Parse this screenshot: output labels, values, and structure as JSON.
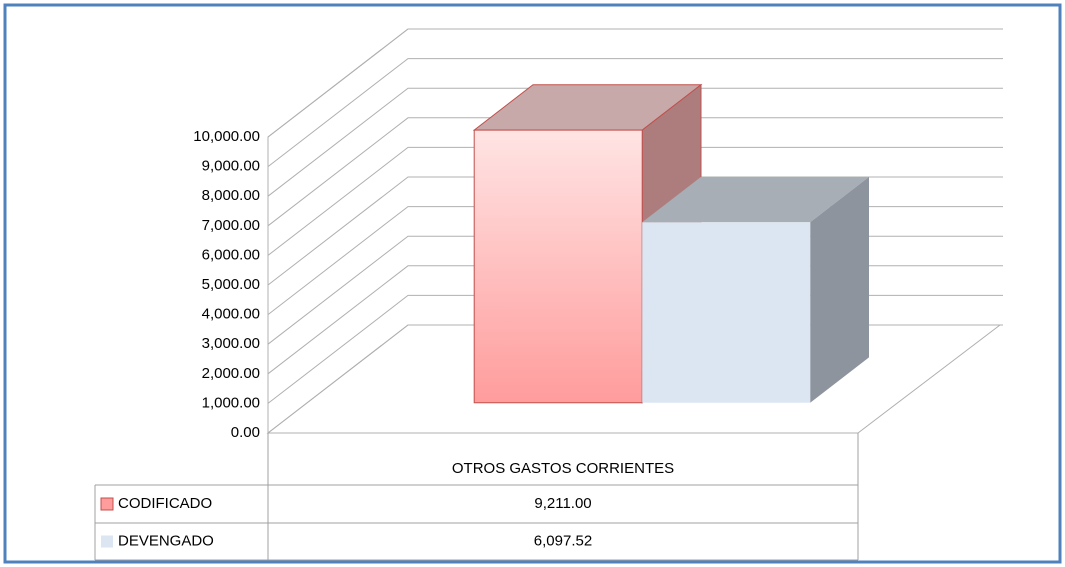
{
  "chart_data": {
    "type": "bar3d",
    "categories": [
      "OTROS GASTOS CORRIENTES"
    ],
    "series": [
      {
        "name": "CODIFICADO",
        "color": "#ff9c9c",
        "values": [
          9211
        ],
        "value_labels": [
          "9,211.00"
        ]
      },
      {
        "name": "DEVENGADO",
        "color": "#dce6f2",
        "values": [
          6097.52
        ],
        "value_labels": [
          "6,097.52"
        ]
      }
    ],
    "ylim": [
      0,
      10000
    ],
    "yticks": [
      {
        "value": 0,
        "label": "0.00"
      },
      {
        "value": 1000,
        "label": "1,000.00"
      },
      {
        "value": 2000,
        "label": "2,000.00"
      },
      {
        "value": 3000,
        "label": "3,000.00"
      },
      {
        "value": 4000,
        "label": "4,000.00"
      },
      {
        "value": 5000,
        "label": "5,000.00"
      },
      {
        "value": 6000,
        "label": "6,000.00"
      },
      {
        "value": 7000,
        "label": "7,000.00"
      },
      {
        "value": 8000,
        "label": "8,000.00"
      },
      {
        "value": 9000,
        "label": "9,000.00"
      },
      {
        "value": 10000,
        "label": "10,000.00"
      }
    ],
    "grid": true
  }
}
